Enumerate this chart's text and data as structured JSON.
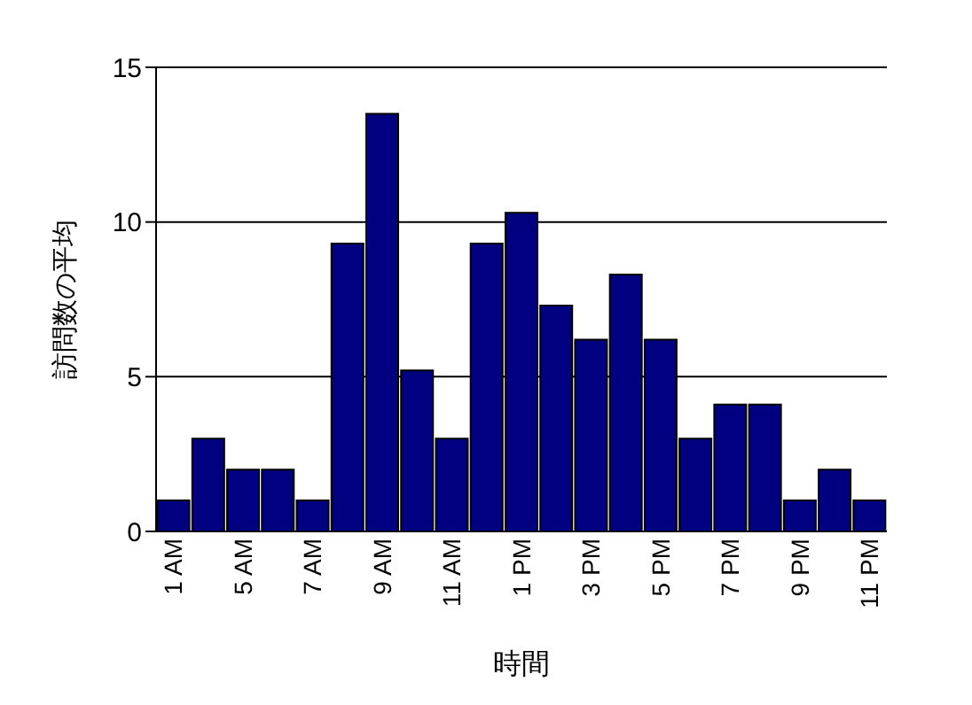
{
  "chart_data": {
    "type": "bar",
    "xlabel": "時間",
    "ylabel": "訪問数の平均",
    "categories": [
      "1 AM",
      null,
      "5 AM",
      null,
      "7 AM",
      null,
      "9 AM",
      null,
      "11 AM",
      null,
      "1 PM",
      null,
      "3 PM",
      null,
      "5 PM",
      null,
      "7 PM",
      null,
      "9 PM",
      null,
      "11 PM"
    ],
    "values": [
      1,
      3,
      2,
      2,
      1,
      9.3,
      13.5,
      5.2,
      3,
      9.3,
      10.3,
      7.3,
      6.2,
      8.3,
      6.2,
      3,
      4.1,
      4.1,
      1,
      2,
      1
    ],
    "color": "#000080",
    "ylim": [
      0,
      15
    ],
    "yticks": [
      0,
      5,
      10,
      15
    ],
    "grid": "y"
  }
}
